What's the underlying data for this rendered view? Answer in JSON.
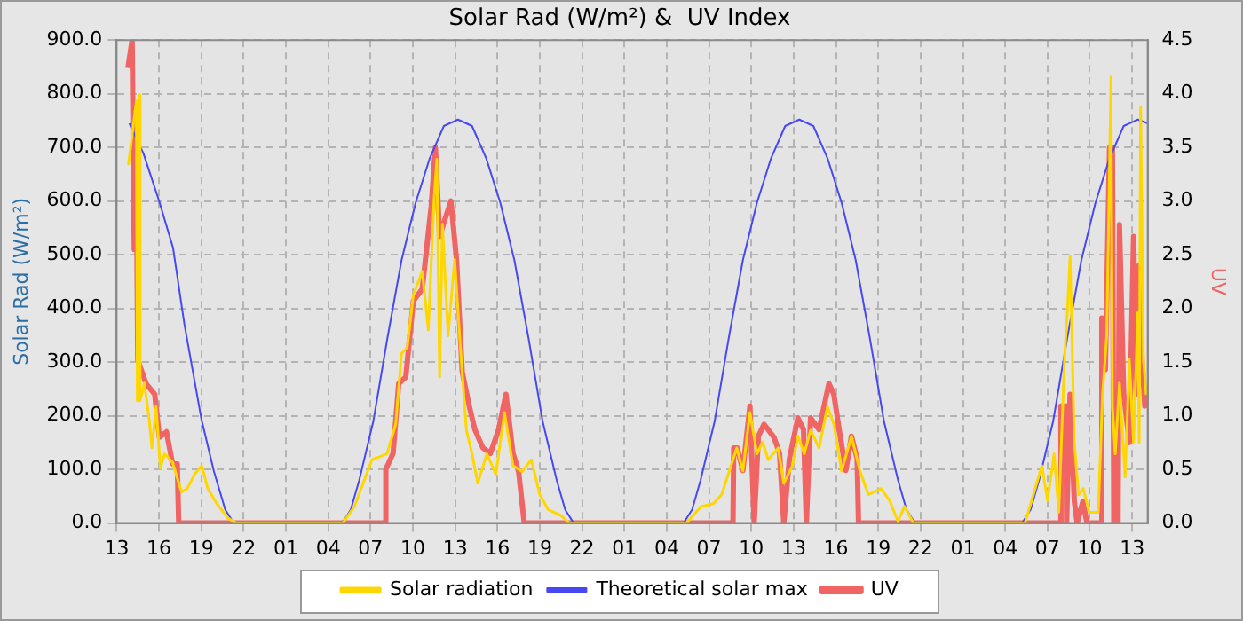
{
  "chart_data": {
    "type": "line",
    "title": "Solar Rad (W/m²) &  UV Index",
    "ylabel": "Solar Rad (W/m²)",
    "y2label": "UV",
    "xlim": [
      "--01-01T13:00",
      "--01-04T14:06"
    ],
    "xticks": [
      {
        "value": "--01-01T13:00",
        "label": "13"
      },
      {
        "value": "--01-01T16:00",
        "label": "16"
      },
      {
        "value": "--01-01T19:00",
        "label": "19"
      },
      {
        "value": "--01-01T22:00",
        "label": "22"
      },
      {
        "value": "--01-02T01:00",
        "label": "01"
      },
      {
        "value": "--01-02T04:00",
        "label": "04"
      },
      {
        "value": "--01-02T07:00",
        "label": "07"
      },
      {
        "value": "--01-02T10:00",
        "label": "10"
      },
      {
        "value": "--01-02T13:00",
        "label": "13"
      },
      {
        "value": "--01-02T16:00",
        "label": "16"
      },
      {
        "value": "--01-02T19:00",
        "label": "19"
      },
      {
        "value": "--01-02T22:00",
        "label": "22"
      },
      {
        "value": "--01-03T01:00",
        "label": "01"
      },
      {
        "value": "--01-03T04:00",
        "label": "04"
      },
      {
        "value": "--01-03T07:00",
        "label": "07"
      },
      {
        "value": "--01-03T10:00",
        "label": "10"
      },
      {
        "value": "--01-03T13:00",
        "label": "13"
      },
      {
        "value": "--01-03T16:00",
        "label": "16"
      },
      {
        "value": "--01-03T19:00",
        "label": "19"
      },
      {
        "value": "--01-03T22:00",
        "label": "22"
      },
      {
        "value": "--01-04T01:00",
        "label": "01"
      },
      {
        "value": "--01-04T04:00",
        "label": "04"
      },
      {
        "value": "--01-04T07:00",
        "label": "07"
      },
      {
        "value": "--01-04T10:00",
        "label": "10"
      },
      {
        "value": "--01-04T13:00",
        "label": "13"
      }
    ],
    "ylim": [
      0,
      900
    ],
    "yticks": [
      {
        "value": 0,
        "label": "0.0"
      },
      {
        "value": 100,
        "label": "100.0"
      },
      {
        "value": 200,
        "label": "200.0"
      },
      {
        "value": 300,
        "label": "300.0"
      },
      {
        "value": 400,
        "label": "400.0"
      },
      {
        "value": 500,
        "label": "500.0"
      },
      {
        "value": 600,
        "label": "600.0"
      },
      {
        "value": 700,
        "label": "700.0"
      },
      {
        "value": 800,
        "label": "800.0"
      },
      {
        "value": 900,
        "label": "900.0"
      }
    ],
    "y2lim": [
      0,
      4.5
    ],
    "y2ticks": [
      {
        "value": 0,
        "label": "0.0"
      },
      {
        "value": 0.5,
        "label": "0.5"
      },
      {
        "value": 1,
        "label": "1.0"
      },
      {
        "value": 1.5,
        "label": "1.5"
      },
      {
        "value": 2,
        "label": "2.0"
      },
      {
        "value": 2.5,
        "label": "2.5"
      },
      {
        "value": 3,
        "label": "3.0"
      },
      {
        "value": 3.5,
        "label": "3.5"
      },
      {
        "value": 4,
        "label": "4.0"
      },
      {
        "value": 4.5,
        "label": "4.5"
      }
    ],
    "grid": true,
    "legend": "bottom",
    "marker": "none",
    "series": [
      {
        "name": "Solar radiation",
        "color": "#ffd700",
        "x": [
          "--01-01T13:50",
          "--01-01T14:24",
          "--01-01T14:28",
          "--01-01T14:35",
          "--01-01T14:40",
          "--01-01T14:58",
          "--01-01T15:18",
          "--01-01T15:30",
          "--01-01T15:48",
          "--01-01T16:06",
          "--01-01T16:24",
          "--01-01T16:58",
          "--01-01T17:36",
          "--01-01T18:00",
          "--01-01T18:32",
          "--01-01T19:02",
          "--01-01T19:28",
          "--01-01T20:06",
          "--01-01T20:54",
          "--01-01T21:30",
          "--01-02T05:02",
          "--01-02T05:52",
          "--01-02T07:06",
          "--01-02T08:10",
          "--01-02T08:47",
          "--01-02T09:12",
          "--01-02T09:36",
          "--01-02T10:02",
          "--01-02T10:40",
          "--01-02T11:06",
          "--01-02T11:30",
          "--01-02T11:42",
          "--01-02T11:54",
          "--01-02T12:06",
          "--01-02T12:30",
          "--01-02T12:58",
          "--01-02T13:24",
          "--01-02T13:48",
          "--01-02T14:12",
          "--01-02T14:36",
          "--01-02T15:15",
          "--01-02T15:53",
          "--01-02T16:30",
          "--01-02T17:06",
          "--01-02T17:45",
          "--01-02T18:24",
          "--01-02T19:00",
          "--01-02T19:36",
          "--01-02T20:30",
          "--01-02T21:06",
          "--01-03T05:24",
          "--01-03T06:27",
          "--01-03T07:18",
          "--01-03T07:54",
          "--01-03T08:30",
          "--01-03T08:58",
          "--01-03T09:24",
          "--01-03T09:54",
          "--01-03T10:24",
          "--01-03T10:48",
          "--01-03T11:12",
          "--01-03T11:54",
          "--01-03T12:18",
          "--01-03T12:55",
          "--01-03T13:18",
          "--01-03T13:45",
          "--01-03T14:12",
          "--01-03T14:48",
          "--01-03T15:24",
          "--01-03T15:51",
          "--01-03T16:24",
          "--01-03T17:06",
          "--01-03T17:42",
          "--01-03T18:18",
          "--01-03T19:12",
          "--01-03T19:48",
          "--01-03T20:24",
          "--01-03T20:51",
          "--01-03T21:30",
          "--01-04T05:24",
          "--01-04T06:00",
          "--01-04T06:36",
          "--01-04T07:00",
          "--01-04T07:28",
          "--01-04T07:48",
          "--01-04T08:12",
          "--01-04T08:24",
          "--01-04T08:36",
          "--01-04T08:54",
          "--01-04T09:12",
          "--01-04T09:32",
          "--01-04T09:58",
          "--01-04T10:36",
          "--01-04T10:54",
          "--01-04T11:12",
          "--01-04T11:30",
          "--01-04T11:36",
          "--01-04T11:48",
          "--01-04T12:06",
          "--01-04T12:30",
          "--01-04T12:48",
          "--01-04T13:06",
          "--01-04T13:24",
          "--01-04T13:30",
          "--01-04T13:36",
          "--01-04T13:48",
          "--01-04T14:00"
        ],
        "values": [
          667,
          787,
          228,
          798,
          228,
          261,
          195,
          140,
          217,
          102,
          129,
          113,
          58,
          64,
          91,
          107,
          64,
          36,
          9,
          0,
          0,
          31,
          118,
          129,
          184,
          316,
          327,
          425,
          469,
          360,
          601,
          678,
          272,
          557,
          349,
          491,
          316,
          173,
          129,
          74,
          129,
          91,
          206,
          107,
          96,
          118,
          53,
          25,
          14,
          0,
          0,
          31,
          36,
          53,
          102,
          140,
          97,
          206,
          129,
          151,
          118,
          140,
          74,
          107,
          162,
          129,
          173,
          140,
          217,
          184,
          97,
          162,
          97,
          53,
          64,
          42,
          3,
          31,
          0,
          0,
          53,
          107,
          42,
          129,
          20,
          305,
          392,
          497,
          150,
          53,
          64,
          20,
          20,
          239,
          349,
          831,
          217,
          129,
          261,
          86,
          305,
          150,
          392,
          150,
          776,
          305,
          239
        ]
      },
      {
        "name": "Theoretical solar max",
        "color": "#4848f0",
        "x": [
          "--01-01T13:54",
          "--01-01T14:54",
          "--01-01T16:00",
          "--01-01T17:00",
          "--01-01T17:48",
          "--01-01T19:00",
          "--01-01T19:54",
          "--01-01T20:42",
          "--01-01T21:18",
          "--01-02T05:00",
          "--01-02T05:36",
          "--01-02T06:12",
          "--01-02T07:12",
          "--01-02T08:12",
          "--01-02T09:12",
          "--01-02T10:12",
          "--01-02T11:12",
          "--01-02T12:12",
          "--01-02T13:12",
          "--01-02T14:12",
          "--01-02T15:12",
          "--01-02T16:12",
          "--01-02T17:12",
          "--01-02T18:12",
          "--01-02T19:12",
          "--01-02T20:12",
          "--01-02T20:48",
          "--01-02T21:24",
          "--01-03T05:12",
          "--01-03T05:48",
          "--01-03T06:24",
          "--01-03T07:24",
          "--01-03T08:24",
          "--01-03T09:24",
          "--01-03T10:24",
          "--01-03T11:24",
          "--01-03T12:24",
          "--01-03T13:24",
          "--01-03T14:24",
          "--01-03T15:24",
          "--01-03T16:24",
          "--01-03T17:24",
          "--01-03T18:24",
          "--01-03T19:24",
          "--01-03T20:24",
          "--01-03T21:00",
          "--01-03T21:36",
          "--01-04T05:12",
          "--01-04T05:48",
          "--01-04T06:24",
          "--01-04T07:24",
          "--01-04T08:24",
          "--01-04T09:24",
          "--01-04T10:24",
          "--01-04T11:24",
          "--01-04T12:24",
          "--01-04T13:24",
          "--01-04T14:06"
        ],
        "values": [
          745,
          689,
          601,
          513,
          371,
          195,
          96,
          25,
          0,
          0,
          25,
          80,
          190,
          345,
          490,
          597,
          680,
          740,
          752,
          740,
          680,
          597,
          490,
          345,
          190,
          80,
          25,
          0,
          0,
          25,
          80,
          190,
          345,
          490,
          597,
          680,
          740,
          752,
          740,
          680,
          597,
          490,
          345,
          190,
          80,
          25,
          0,
          0,
          25,
          80,
          190,
          345,
          490,
          597,
          680,
          740,
          752,
          745
        ]
      },
      {
        "name": "UV",
        "color": "#f06464",
        "axis": "y2",
        "x": [
          "--01-01T13:48",
          "--01-01T14:06",
          "--01-01T14:15",
          "--01-01T14:23",
          "--01-01T14:30",
          "--01-01T15:05",
          "--01-01T15:42",
          "--01-01T16:02",
          "--01-01T16:32",
          "--01-01T16:58",
          "--01-01T17:18",
          "--01-01T17:24",
          "--01-02T08:03",
          "--01-02T08:05",
          "--01-02T08:36",
          "--01-02T09:00",
          "--01-02T09:30",
          "--01-02T10:02",
          "--01-02T10:40",
          "--01-02T11:18",
          "--01-02T11:36",
          "--01-02T11:54",
          "--01-02T12:18",
          "--01-02T12:42",
          "--01-02T13:06",
          "--01-02T13:30",
          "--01-02T14:00",
          "--01-02T14:24",
          "--01-02T14:58",
          "--01-02T15:30",
          "--01-02T16:05",
          "--01-02T16:36",
          "--01-02T17:06",
          "--01-02T17:30",
          "--01-02T17:54",
          "--01-03T08:42",
          "--01-03T08:45",
          "--01-03T09:00",
          "--01-03T09:24",
          "--01-03T09:54",
          "--01-03T10:12",
          "--01-03T10:30",
          "--01-03T10:54",
          "--01-03T11:36",
          "--01-03T12:00",
          "--01-03T12:18",
          "--01-03T12:42",
          "--01-03T13:18",
          "--01-03T13:42",
          "--01-03T13:54",
          "--01-03T14:12",
          "--01-03T14:48",
          "--01-03T15:30",
          "--01-03T15:51",
          "--01-03T16:18",
          "--01-03T16:42",
          "--01-03T17:06",
          "--01-03T17:30",
          "--01-03T17:36",
          "--01-04T07:54",
          "--01-04T07:57",
          "--01-04T08:18",
          "--01-04T08:21",
          "--01-04T08:36",
          "--01-04T08:54",
          "--01-04T09:06",
          "--01-04T09:30",
          "--01-04T09:48",
          "--01-04T10:48",
          "--01-04T10:51",
          "--01-04T11:06",
          "--01-04T11:24",
          "--01-04T11:36",
          "--01-04T11:42",
          "--01-04T12:00",
          "--01-04T12:06",
          "--01-04T12:24",
          "--01-04T12:48",
          "--01-04T13:06",
          "--01-04T13:18",
          "--01-04T13:30",
          "--01-04T13:42",
          "--01-04T13:54",
          "--01-04T14:00"
        ],
        "values": [
          4.24,
          4.5,
          2.55,
          3.5,
          1.52,
          1.3,
          1.2,
          0.8,
          0.85,
          0.55,
          0.55,
          0,
          0,
          0.5,
          0.65,
          1.3,
          1.36,
          2.07,
          2.18,
          2.95,
          3.5,
          2.67,
          2.84,
          3.0,
          2.45,
          1.41,
          1.09,
          0.87,
          0.7,
          0.65,
          0.87,
          1.2,
          0.65,
          0.48,
          0,
          0,
          0.7,
          0.7,
          0.49,
          1.09,
          0,
          0.81,
          0.92,
          0.8,
          0.65,
          0,
          0.6,
          0.98,
          0.87,
          0,
          0.98,
          0.87,
          1.3,
          1.2,
          0.81,
          0.49,
          0.81,
          0.6,
          0,
          0,
          1.09,
          1.09,
          0,
          1.2,
          0.2,
          0,
          0.2,
          0,
          0,
          1.91,
          1.43,
          3.5,
          3.5,
          0,
          0,
          2.78,
          1.2,
          0.75,
          2.67,
          1.2,
          2.4,
          1.52,
          1.09,
          1.2
        ]
      }
    ]
  }
}
